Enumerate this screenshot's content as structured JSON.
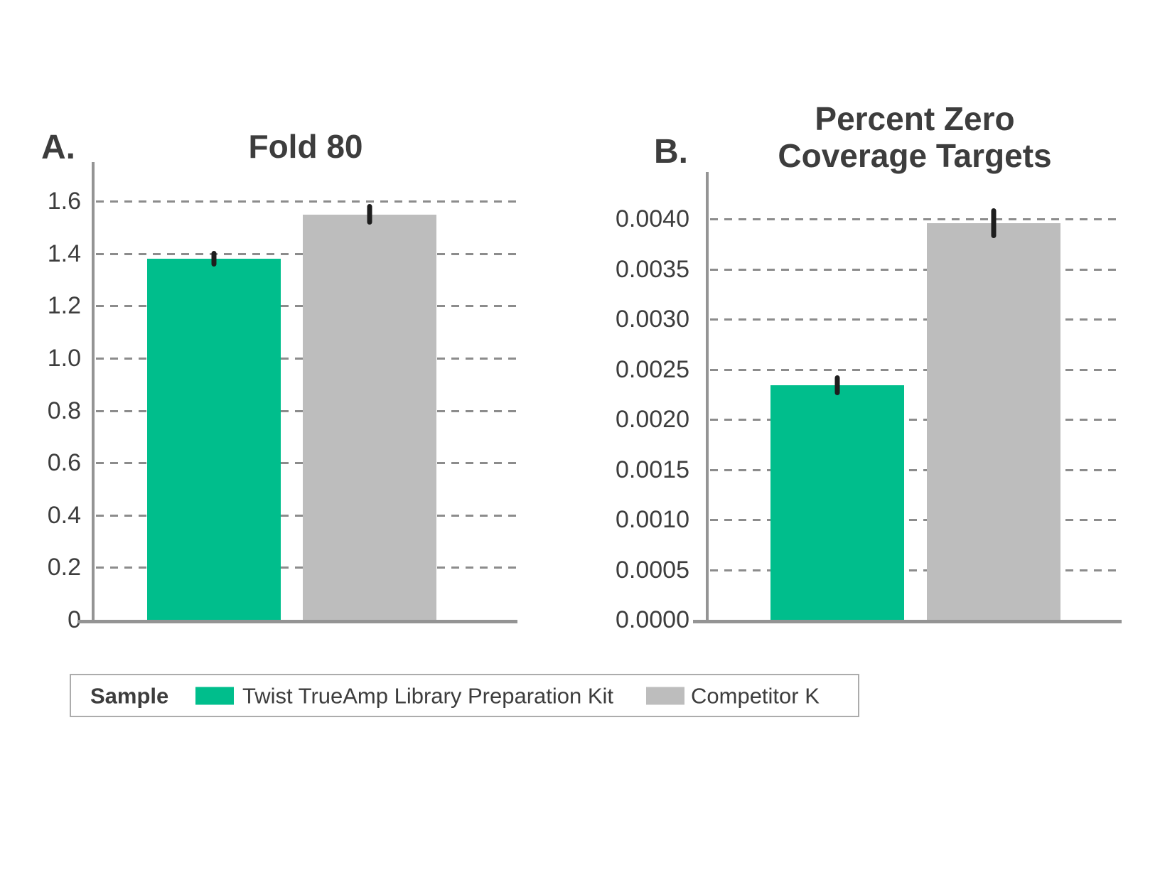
{
  "figure": {
    "background": "#ffffff"
  },
  "colors": {
    "twist_green": "#00BE8C",
    "competitor_gray": "#BDBDBD",
    "axis_gray": "#949494",
    "gridline_gray": "#8C8C8C",
    "text_dark": "#3D3D3D",
    "error_bar_black": "#1E1E1E",
    "legend_border": "#ACACAC"
  },
  "chart_data": [
    {
      "type": "bar",
      "panel_label": "A.",
      "title": "Fold 80",
      "title_lines": [
        "Fold 80"
      ],
      "categories": [
        "Twist TrueAmp Library Preparation Kit",
        "Competitor K"
      ],
      "values": [
        1.38,
        1.55
      ],
      "error_bars": [
        0.03,
        0.04
      ],
      "bar_colors": [
        "#00BE8C",
        "#BDBDBD"
      ],
      "ylim": [
        0,
        1.75
      ],
      "yticks": [
        0,
        0.2,
        0.4,
        0.6,
        0.8,
        1.0,
        1.2,
        1.4,
        1.6
      ],
      "ytick_labels": [
        "0",
        "0.2",
        "0.4",
        "0.6",
        "0.8",
        "1.0",
        "1.2",
        "1.4",
        "1.6"
      ],
      "grid": "horizontal-dashed",
      "xlabel": "",
      "ylabel": ""
    },
    {
      "type": "bar",
      "panel_label": "B.",
      "title": "Percent Zero Coverage Targets",
      "title_lines": [
        "Percent Zero",
        "Coverage Targets"
      ],
      "categories": [
        "Twist TrueAmp Library Preparation Kit",
        "Competitor K"
      ],
      "values": [
        0.00234,
        0.00396
      ],
      "error_bars": [
        0.0001,
        0.00015
      ],
      "bar_colors": [
        "#00BE8C",
        "#BDBDBD"
      ],
      "ylim": [
        0,
        0.00447
      ],
      "yticks": [
        0,
        0.0005,
        0.001,
        0.0015,
        0.002,
        0.0025,
        0.003,
        0.0035,
        0.004
      ],
      "ytick_labels": [
        "0.0000",
        "0.0005",
        "0.0010",
        "0.0015",
        "0.0020",
        "0.0025",
        "0.0030",
        "0.0035",
        "0.0040"
      ],
      "grid": "horizontal-dashed",
      "xlabel": "",
      "ylabel": ""
    }
  ],
  "legend": {
    "title": "Sample",
    "entries": [
      {
        "label": "Twist TrueAmp Library Preparation Kit",
        "color": "#00BE8C"
      },
      {
        "label": "Competitor K",
        "color": "#BDBDBD"
      }
    ]
  }
}
